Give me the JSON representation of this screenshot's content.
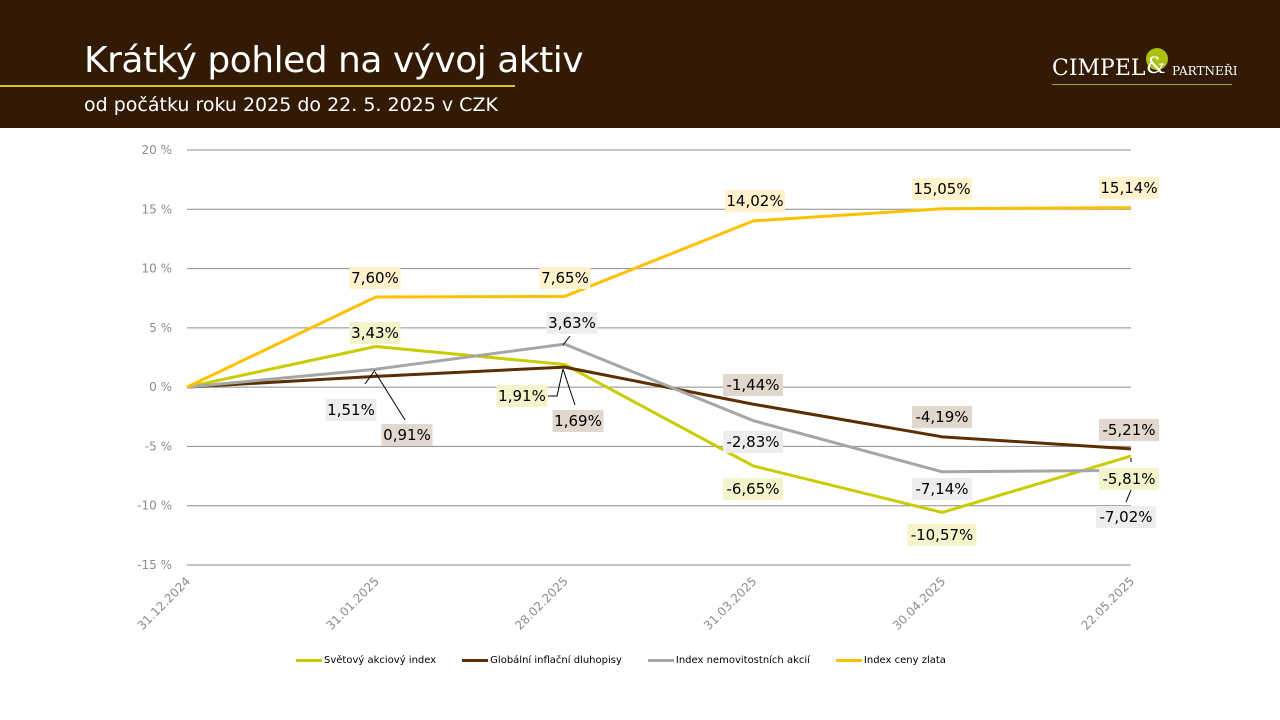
{
  "header": {
    "title": "Krátký pohled na vývoj aktiv",
    "subtitle": "od počátku roku 2025 do 22. 5. 2025 v CZK",
    "logo_text": "CIMPEL",
    "logo_amp": "&",
    "logo_sub": "PARTNEŘI"
  },
  "chart_data": {
    "type": "line",
    "title": "",
    "xlabel": "",
    "ylabel": "",
    "categories": [
      "31.12.2024",
      "31.01.2025",
      "28.02.2025",
      "31.03.2025",
      "30.04.2025",
      "22.05.2025"
    ],
    "y_ticks": [
      "20 %",
      "15 %",
      "10 %",
      "5 %",
      "0 %",
      "-5 %",
      "-10 %",
      "-15 %"
    ],
    "y_tick_values": [
      20,
      15,
      10,
      5,
      0,
      -5,
      -10,
      -15
    ],
    "ylim": [
      -15,
      20
    ],
    "grid": true,
    "legend_position": "bottom",
    "series": [
      {
        "name": "Světový akciový index",
        "color": "#c9cc00",
        "label_bg": "#f4f4cc",
        "values": [
          0,
          3.43,
          1.91,
          -6.65,
          -10.57,
          -5.81
        ],
        "labels": [
          null,
          "3,43%",
          "1,91%",
          "-6,65%",
          "-10,57%",
          "-5,81%"
        ]
      },
      {
        "name": "Globální inflační dluhopisy",
        "color": "#5c2e04",
        "label_bg": "#e2d7cc",
        "values": [
          0,
          0.91,
          1.69,
          -1.44,
          -4.19,
          -5.21
        ],
        "labels": [
          null,
          "0,91%",
          "1,69%",
          "-1,44%",
          "-4,19%",
          "-5,21%"
        ]
      },
      {
        "name": "Index nemovitostních akcií",
        "color": "#a6a6a6",
        "label_bg": "#ededed",
        "values": [
          0,
          1.51,
          3.63,
          -2.83,
          -7.14,
          -7.02
        ],
        "labels": [
          null,
          "1,51%",
          "3,63%",
          "-2,83%",
          "-7,14%",
          "-7,02%"
        ]
      },
      {
        "name": "Index ceny zlata",
        "color": "#ffc000",
        "label_bg": "#fff2cc",
        "values": [
          0,
          7.6,
          7.65,
          14.02,
          15.05,
          15.14
        ],
        "labels": [
          null,
          "7,60%",
          "7,65%",
          "14,02%",
          "15,05%",
          "15,14%"
        ]
      }
    ]
  }
}
